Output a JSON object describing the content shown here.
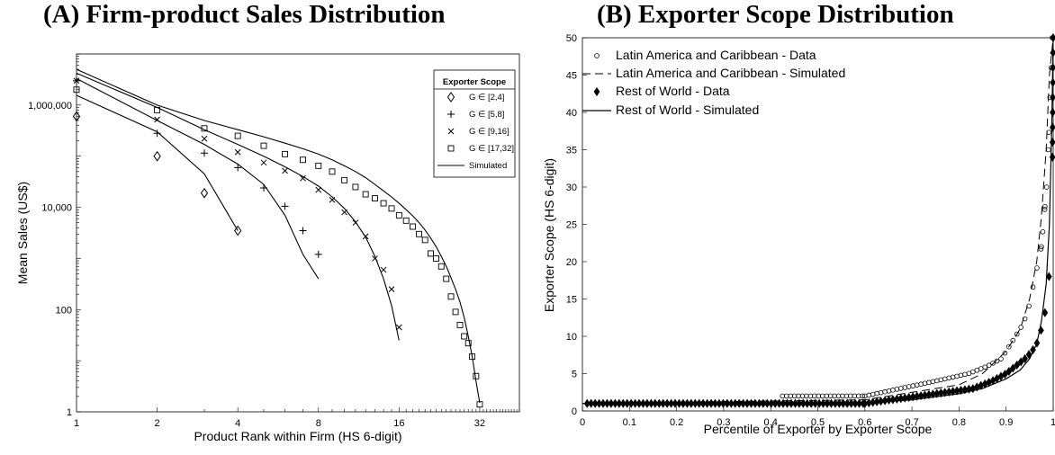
{
  "chart_data": [
    {
      "type": "line",
      "title": "(A) Firm-product Sales Distribution",
      "xlabel": "Product Rank within Firm (HS 6-digit)",
      "ylabel": "Mean Sales (US$)",
      "xscale": "log2",
      "yscale": "log10",
      "xlim": [
        1,
        45
      ],
      "ylim": [
        1,
        10000000
      ],
      "xticks": [
        1,
        2,
        4,
        8,
        16,
        32
      ],
      "xtick_labels": [
        "1",
        "2",
        "4",
        "8",
        "16",
        "32"
      ],
      "yticks": [
        1,
        100,
        10000,
        1000000
      ],
      "ytick_labels": [
        "1",
        "100",
        "10,000",
        "1,000,000"
      ],
      "grid": false,
      "legend": {
        "title": "Exporter Scope",
        "placement": "top-right",
        "entries": [
          "G ∈ [2,4]",
          "G ∈ [5,8]",
          "G ∈ [9,16]",
          "G ∈ [17,32]",
          "Simulated"
        ]
      },
      "series": [
        {
          "name": "G ∈ [2,4]",
          "marker": "diamond",
          "data": {
            "x": [
              1,
              2,
              3,
              4
            ],
            "y": [
              600000,
              100000,
              19000,
              3500
            ]
          },
          "simulated": {
            "x": [
              1,
              2,
              3,
              4
            ],
            "y": [
              1550000,
              300000,
              45000,
              3500
            ]
          }
        },
        {
          "name": "G ∈ [5,8]",
          "marker": "plus",
          "data": {
            "x": [
              1,
              2,
              3,
              4,
              5,
              6,
              7,
              8
            ],
            "y": [
              3000000,
              280000,
              115000,
              60000,
              24000,
              10500,
              3500,
              1200
            ]
          },
          "simulated": {
            "x": [
              1,
              2,
              3,
              4,
              5,
              6,
              7,
              8
            ],
            "y": [
              3300000,
              500000,
              170000,
              70000,
              28000,
              7000,
              1200,
              400
            ]
          }
        },
        {
          "name": "G ∈ [9,16]",
          "marker": "x",
          "data": {
            "x": [
              1,
              2,
              3,
              4,
              5,
              6,
              7,
              8,
              9,
              10,
              11,
              12,
              13,
              14,
              15,
              16
            ],
            "y": [
              3000000,
              520000,
              220000,
              120000,
              75000,
              52000,
              37000,
              22000,
              14000,
              8000,
              5000,
              2700,
              1000,
              600,
              250,
              45
            ]
          },
          "simulated": {
            "x": [
              1,
              2,
              3,
              4,
              5,
              6,
              7,
              8,
              9,
              10,
              11,
              12,
              13,
              14,
              15,
              16
            ],
            "y": [
              4200000,
              900000,
              330000,
              170000,
              100000,
              62000,
              40000,
              26000,
              16000,
              9500,
              5200,
              2600,
              1100,
              400,
              120,
              25
            ]
          }
        },
        {
          "name": "G ∈ [17,32]",
          "marker": "square",
          "data": {
            "x": [
              1,
              2,
              3,
              4,
              5,
              6,
              7,
              8,
              9,
              10,
              11,
              12,
              13,
              14,
              15,
              16,
              17,
              18,
              19,
              20,
              21,
              22,
              23,
              24,
              25,
              26,
              27,
              28,
              29,
              30,
              31,
              32
            ],
            "y": [
              2000000,
              800000,
              350000,
              250000,
              160000,
              110000,
              85000,
              65000,
              50000,
              34000,
              25000,
              18000,
              15000,
              12000,
              9500,
              7000,
              5500,
              4200,
              3000,
              2300,
              1250,
              1000,
              700,
              400,
              180,
              90,
              50,
              30,
              22,
              12,
              5,
              1.4
            ]
          },
          "simulated": {
            "x": [
              1,
              2,
              3,
              4,
              5,
              6,
              7,
              8,
              9,
              10,
              11,
              12,
              13,
              14,
              15,
              16,
              17,
              18,
              19,
              20,
              21,
              22,
              23,
              24,
              25,
              26,
              27,
              28,
              29,
              30,
              31,
              32
            ],
            "y": [
              5000000,
              1000000,
              500000,
              330000,
              240000,
              180000,
              140000,
              110000,
              85000,
              65000,
              50000,
              38000,
              28000,
              21000,
              16000,
              12000,
              9000,
              6800,
              5000,
              3600,
              2500,
              1700,
              1100,
              700,
              420,
              250,
              140,
              70,
              30,
              12,
              4,
              1.5
            ]
          }
        }
      ]
    },
    {
      "type": "scatter",
      "title": "(B) Exporter Scope Distribution",
      "xlabel": "Percentile of Exporter by Exporter Scope",
      "ylabel": "Exporter Scope (HS 6-digit)",
      "xlim": [
        0,
        1
      ],
      "ylim": [
        0,
        50
      ],
      "xticks": [
        0,
        0.1,
        0.2,
        0.3,
        0.4,
        0.5,
        0.6,
        0.7,
        0.8,
        0.9,
        1
      ],
      "xtick_labels": [
        "0",
        "0.1",
        "0.2",
        "0.3",
        "0.4",
        "0.5",
        "0.6",
        "0.7",
        "0.8",
        "0.9",
        "1"
      ],
      "yticks": [
        0,
        5,
        10,
        15,
        20,
        25,
        30,
        35,
        40,
        45,
        50
      ],
      "ytick_labels": [
        "0",
        "5",
        "10",
        "15",
        "20",
        "25",
        "30",
        "35",
        "40",
        "45",
        "50"
      ],
      "grid": false,
      "legend": {
        "placement": "top-left",
        "entries": [
          "Latin America and Caribbean - Data",
          "Latin America and Caribbean - Simulated",
          "Rest of World - Data",
          "Rest of World - Simulated"
        ]
      },
      "series": [
        {
          "name": "Latin America and Caribbean - Data",
          "marker": "open-circle",
          "x": [
            0.425,
            0.75,
            0.82,
            0.86,
            0.89,
            0.91,
            0.93,
            0.945,
            0.95,
            0.955,
            0.96,
            0.965,
            0.97,
            0.975,
            0.978,
            0.982,
            0.986,
            0.99,
            0.993,
            0.996,
            0.998
          ],
          "y": [
            1,
            4,
            5,
            6,
            7,
            9,
            11,
            13,
            14.5,
            16,
            17.5,
            19,
            20.5,
            22,
            24,
            27,
            30,
            35,
            42,
            46,
            50
          ]
        },
        {
          "name": "Latin America and Caribbean - Simulated",
          "line": "dashed",
          "x": [
            0,
            0.6,
            0.7,
            0.8,
            0.85,
            0.9,
            0.93,
            0.95,
            0.965,
            0.975,
            0.985,
            0.992,
            1
          ],
          "y": [
            1,
            1.5,
            2.5,
            3.5,
            5,
            8,
            11,
            15,
            20,
            26,
            35,
            45,
            50
          ]
        },
        {
          "name": "Rest of World - Data",
          "marker": "filled-diamond",
          "x": [
            0.6,
            0.83,
            0.87,
            0.9,
            0.92,
            0.94,
            0.955,
            0.965,
            0.975,
            0.982,
            0.988,
            0.992,
            0.995,
            0.998
          ],
          "y": [
            1,
            3,
            4,
            5,
            6,
            7,
            8,
            9,
            11,
            13,
            15,
            19,
            25,
            33
          ]
        },
        {
          "name": "Rest of World - Simulated",
          "line": "solid",
          "x": [
            0,
            0.6,
            0.7,
            0.8,
            0.85,
            0.9,
            0.93,
            0.95,
            0.965,
            0.975,
            0.985,
            0.992,
            0.997,
            1
          ],
          "y": [
            1,
            1.1,
            1.5,
            2.3,
            3,
            4.3,
            5.5,
            7,
            9,
            12,
            17,
            25,
            38,
            50
          ]
        }
      ]
    }
  ]
}
